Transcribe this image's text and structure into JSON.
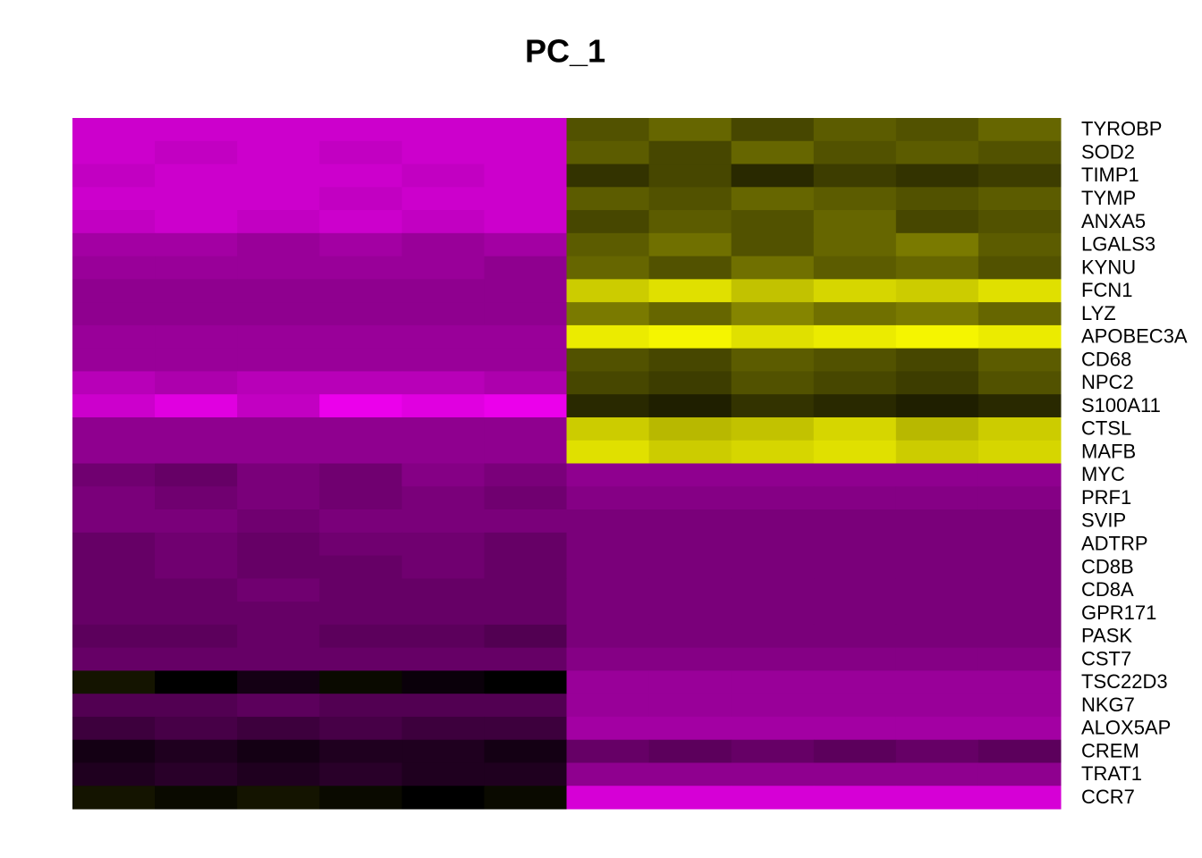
{
  "chart_data": {
    "type": "heatmap",
    "title": "PC_1",
    "rows": [
      "TYROBP",
      "SOD2",
      "TIMP1",
      "TYMP",
      "ANXA5",
      "LGALS3",
      "KYNU",
      "FCN1",
      "LYZ",
      "APOBEC3A",
      "CD68",
      "NPC2",
      "S100A11",
      "CTSL",
      "MAFB",
      "MYC",
      "PRF1",
      "SVIP",
      "ADTRP",
      "CD8B",
      "CD8A",
      "GPR171",
      "PASK",
      "CST7",
      "TSC22D3",
      "NKG7",
      "ALOX5AP",
      "CREM",
      "TRAT1",
      "CCR7"
    ],
    "values": [
      [
        -2.0,
        -2.0,
        -2.0,
        -2.0,
        -2.0,
        -2.0,
        0.8,
        1.0,
        0.7,
        0.9,
        0.8,
        1.0
      ],
      [
        -2.0,
        -1.9,
        -2.0,
        -1.9,
        -2.0,
        -2.0,
        0.9,
        0.7,
        1.0,
        0.8,
        0.9,
        0.8
      ],
      [
        -1.9,
        -2.0,
        -2.0,
        -2.0,
        -1.9,
        -2.0,
        0.5,
        0.7,
        0.4,
        0.6,
        0.5,
        0.6
      ],
      [
        -2.0,
        -2.0,
        -2.0,
        -1.9,
        -2.0,
        -2.0,
        0.9,
        0.8,
        1.0,
        0.9,
        0.8,
        0.9
      ],
      [
        -1.9,
        -2.0,
        -1.9,
        -2.0,
        -1.9,
        -2.0,
        0.7,
        0.9,
        0.8,
        1.0,
        0.7,
        0.8
      ],
      [
        -1.6,
        -1.6,
        -1.5,
        -1.6,
        -1.5,
        -1.6,
        0.9,
        1.1,
        0.8,
        1.0,
        1.2,
        0.9
      ],
      [
        -1.5,
        -1.5,
        -1.5,
        -1.5,
        -1.5,
        -1.4,
        1.0,
        0.8,
        1.1,
        0.9,
        1.0,
        0.8
      ],
      [
        -1.4,
        -1.4,
        -1.4,
        -1.4,
        -1.4,
        -1.4,
        2.0,
        2.2,
        1.9,
        2.1,
        2.0,
        2.2
      ],
      [
        -1.4,
        -1.4,
        -1.4,
        -1.4,
        -1.4,
        -1.4,
        1.2,
        1.0,
        1.3,
        1.1,
        1.2,
        1.0
      ],
      [
        -1.5,
        -1.5,
        -1.5,
        -1.5,
        -1.5,
        -1.5,
        2.3,
        2.4,
        2.2,
        2.3,
        2.4,
        2.3
      ],
      [
        -1.5,
        -1.5,
        -1.5,
        -1.5,
        -1.5,
        -1.5,
        0.8,
        0.7,
        0.9,
        0.8,
        0.7,
        0.9
      ],
      [
        -1.8,
        -1.7,
        -1.8,
        -1.8,
        -1.8,
        -1.7,
        0.7,
        0.6,
        0.8,
        0.7,
        0.6,
        0.8
      ],
      [
        -2.0,
        -2.2,
        -1.9,
        -2.3,
        -2.2,
        -2.3,
        0.4,
        0.3,
        0.5,
        0.4,
        0.3,
        0.4
      ],
      [
        -1.4,
        -1.4,
        -1.4,
        -1.4,
        -1.4,
        -1.4,
        2.0,
        1.8,
        1.9,
        2.1,
        1.8,
        2.0
      ],
      [
        -1.4,
        -1.4,
        -1.4,
        -1.4,
        -1.4,
        -1.4,
        2.2,
        2.0,
        2.1,
        2.2,
        2.0,
        2.1
      ],
      [
        -1.1,
        -1.0,
        -1.2,
        -1.1,
        -1.3,
        -1.2,
        -1.4,
        -1.4,
        -1.4,
        -1.4,
        -1.4,
        -1.4
      ],
      [
        -1.2,
        -1.1,
        -1.2,
        -1.1,
        -1.2,
        -1.1,
        -1.3,
        -1.3,
        -1.3,
        -1.3,
        -1.3,
        -1.3
      ],
      [
        -1.2,
        -1.2,
        -1.1,
        -1.2,
        -1.2,
        -1.2,
        -1.2,
        -1.2,
        -1.2,
        -1.2,
        -1.2,
        -1.2
      ],
      [
        -1.0,
        -1.1,
        -1.0,
        -1.1,
        -1.1,
        -1.0,
        -1.2,
        -1.2,
        -1.2,
        -1.2,
        -1.2,
        -1.2
      ],
      [
        -1.0,
        -1.1,
        -1.0,
        -1.0,
        -1.1,
        -1.0,
        -1.2,
        -1.2,
        -1.2,
        -1.2,
        -1.2,
        -1.2
      ],
      [
        -1.0,
        -1.0,
        -1.1,
        -1.0,
        -1.0,
        -1.0,
        -1.2,
        -1.2,
        -1.2,
        -1.2,
        -1.2,
        -1.2
      ],
      [
        -1.0,
        -1.0,
        -1.0,
        -1.0,
        -1.0,
        -1.0,
        -1.2,
        -1.2,
        -1.2,
        -1.2,
        -1.2,
        -1.2
      ],
      [
        -0.9,
        -0.9,
        -1.0,
        -0.9,
        -0.9,
        -0.8,
        -1.2,
        -1.2,
        -1.2,
        -1.2,
        -1.2,
        -1.2
      ],
      [
        -1.0,
        -1.0,
        -1.0,
        -1.0,
        -1.0,
        -1.0,
        -1.3,
        -1.3,
        -1.3,
        -1.3,
        -1.3,
        -1.3
      ],
      [
        0.2,
        0.0,
        -0.2,
        0.1,
        -0.1,
        0.0,
        -1.5,
        -1.5,
        -1.5,
        -1.5,
        -1.5,
        -1.5
      ],
      [
        -0.8,
        -0.8,
        -0.9,
        -0.8,
        -0.8,
        -0.8,
        -1.5,
        -1.5,
        -1.5,
        -1.5,
        -1.5,
        -1.5
      ],
      [
        -0.6,
        -0.7,
        -0.6,
        -0.7,
        -0.6,
        -0.6,
        -1.6,
        -1.6,
        -1.6,
        -1.6,
        -1.6,
        -1.6
      ],
      [
        -0.2,
        -0.3,
        -0.2,
        -0.3,
        -0.3,
        -0.2,
        -1.0,
        -0.9,
        -1.0,
        -0.9,
        -1.0,
        -0.9
      ],
      [
        -0.3,
        -0.4,
        -0.3,
        -0.4,
        -0.3,
        -0.3,
        -1.4,
        -1.4,
        -1.4,
        -1.4,
        -1.4,
        -1.4
      ],
      [
        0.2,
        0.1,
        0.2,
        0.1,
        0.0,
        0.1,
        -2.1,
        -2.1,
        -2.1,
        -2.1,
        -2.1,
        -2.1
      ]
    ],
    "zlim": [
      -2.5,
      2.5
    ],
    "colors": {
      "low": "#ff00ff",
      "mid": "#000000",
      "high": "#ffff00"
    }
  }
}
